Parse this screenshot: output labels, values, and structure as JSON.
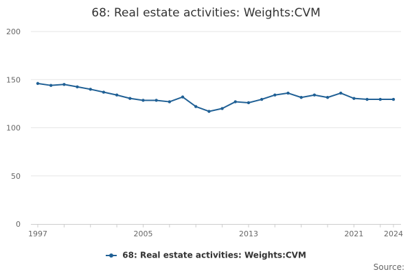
{
  "chart_data": {
    "type": "line",
    "title": "68: Real estate activities: Weights:CVM",
    "xlabel": "",
    "ylabel": "",
    "x": [
      1997,
      1998,
      1999,
      2000,
      2001,
      2002,
      2003,
      2004,
      2005,
      2006,
      2007,
      2008,
      2009,
      2010,
      2011,
      2012,
      2013,
      2014,
      2015,
      2016,
      2017,
      2018,
      2019,
      2020,
      2021,
      2022,
      2023,
      2024
    ],
    "series": [
      {
        "name": "68: Real estate activities: Weights:CVM",
        "values": [
          146,
          144,
          145,
          142.5,
          140,
          137,
          134,
          130.5,
          128.5,
          128.5,
          127,
          132,
          122,
          117,
          120,
          127,
          126,
          129.5,
          134,
          136,
          131.5,
          134,
          131.5,
          136,
          130.5,
          129.5,
          129.5,
          129.5
        ]
      }
    ],
    "ylim": [
      0,
      200
    ],
    "yticks": [
      0,
      50,
      100,
      150,
      200
    ],
    "xtick_labels": [
      "1997",
      "2005",
      "2013",
      "2021",
      "2024"
    ],
    "grid": true,
    "legend": "bottom-center",
    "color": "#206095"
  },
  "footer": {
    "source_label": "Source:"
  }
}
